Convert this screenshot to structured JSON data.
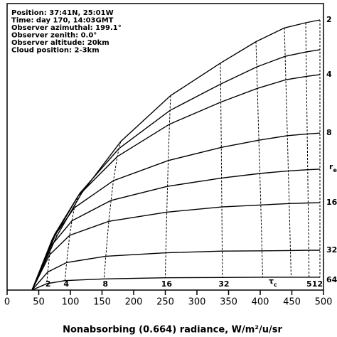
{
  "chart_data": {
    "type": "line",
    "annotations": [
      "Position: 37:41N, 25:01W",
      "Time: day 170, 14:03GMT",
      "Observer azimuthal: 199.1°",
      "Observer zenith: 0.0°",
      "Observer altitude: 20km",
      "Cloud position: 2-3km"
    ],
    "x_label": "Nonabsorbing (0.664) radiance, W/m²/u/sr",
    "r_symbol": "r",
    "r_subscript": "e",
    "tau_symbol": "τ",
    "tau_subscript": "c",
    "tau_labels": [
      null,
      "2",
      "4",
      "8",
      "16",
      "32",
      null,
      null,
      null,
      "512"
    ],
    "color": "#000000",
    "xlim": [
      0,
      500
    ],
    "xticks": [
      0,
      50,
      100,
      150,
      200,
      250,
      300,
      350,
      400,
      450,
      500
    ],
    "ylim": [
      0,
      100
    ],
    "series": [
      {
        "name": "2",
        "x": [
          39.3,
          78.7,
          118.0,
          179.8,
          258.4,
          337.1,
          393.3,
          438.2,
          471.9,
          494.4
        ],
        "values": [
          0,
          18.9,
          33.9,
          51.9,
          67.9,
          79.2,
          86.7,
          91.5,
          93.3,
          94.3
        ]
      },
      {
        "name": null,
        "x": [
          39.3,
          76.8,
          114.9,
          176.7,
          257.4,
          337.5,
          394.5,
          439.4,
          472.5,
          494.4
        ],
        "values": [
          0,
          19.5,
          33.8,
          49.4,
          62.7,
          71.9,
          77.9,
          81.6,
          83.1,
          83.9
        ]
      },
      {
        "name": "4",
        "x": [
          39.3,
          75.3,
          112.4,
          174.2,
          256.6,
          337.8,
          395.5,
          440.4,
          473.0,
          494.4
        ],
        "values": [
          0,
          19.5,
          32.9,
          46.6,
          57.9,
          65.6,
          70.4,
          73.4,
          74.6,
          75.2
        ]
      },
      {
        "name": "8",
        "x": [
          39.3,
          71.6,
          106.2,
          168.0,
          254.6,
          338.5,
          397.9,
          442.9,
          474.3,
          494.4
        ],
        "values": [
          0,
          17.9,
          28.7,
          38.2,
          45.2,
          49.8,
          52.3,
          53.9,
          54.5,
          54.8
        ]
      },
      {
        "name": null,
        "x": [
          39.3,
          69.4,
          102.5,
          164.3,
          253.5,
          338.9,
          399.4,
          444.4,
          475.0,
          494.4
        ],
        "values": [
          0,
          15.4,
          24.2,
          31.3,
          36.2,
          39.1,
          40.7,
          41.6,
          42.0,
          42.2
        ]
      },
      {
        "name": "16",
        "x": [
          39.3,
          67.2,
          98.9,
          160.7,
          252.4,
          339.3,
          400.9,
          445.8,
          475.7,
          494.4
        ],
        "values": [
          0,
          12.3,
          19.1,
          24.0,
          27.2,
          29.0,
          29.7,
          30.2,
          30.4,
          30.5
        ]
      },
      {
        "name": "32",
        "x": [
          39.3,
          64.3,
          94.1,
          155.9,
          250.8,
          339.9,
          402.8,
          447.8,
          476.7,
          494.4
        ],
        "values": [
          0,
          6.3,
          9.6,
          11.8,
          13.0,
          13.6,
          13.7,
          13.8,
          13.9,
          13.9
        ]
      },
      {
        "name": "64",
        "x": [
          39.3,
          62.6,
          91.3,
          153.1,
          249.9,
          340.3,
          403.9,
          448.9,
          477.2,
          494.4
        ],
        "values": [
          0,
          2.2,
          3.3,
          3.9,
          4.3,
          4.4,
          4.5,
          4.5,
          4.5,
          4.5
        ]
      }
    ]
  }
}
